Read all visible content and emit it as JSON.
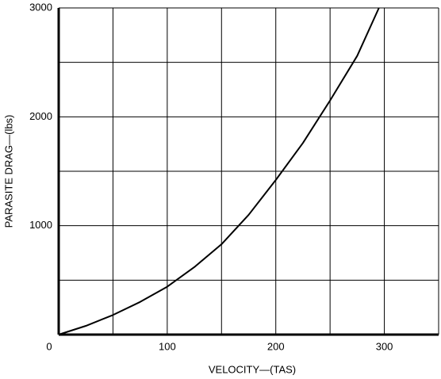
{
  "chart_data": {
    "type": "line",
    "xlabel": "VELOCITY—(TAS)",
    "ylabel": "PARASITE DRAG—(lbs)",
    "x": [
      0,
      25,
      50,
      75,
      100,
      125,
      150,
      175,
      200,
      225,
      250,
      275,
      295
    ],
    "series": [
      {
        "color": "#000000",
        "values": [
          0,
          80,
          180,
          300,
          440,
          620,
          830,
          1100,
          1420,
          1760,
          2150,
          2560,
          3000
        ]
      }
    ],
    "xlim": [
      0,
      350
    ],
    "ylim": [
      0,
      3000
    ],
    "xticks": [
      0,
      100,
      200,
      300
    ],
    "yticks": [
      1000,
      2000,
      3000
    ],
    "x_minor_grid": [
      50,
      150,
      250,
      350
    ],
    "y_minor_grid": [
      500,
      1500,
      2500
    ],
    "grid": true
  }
}
